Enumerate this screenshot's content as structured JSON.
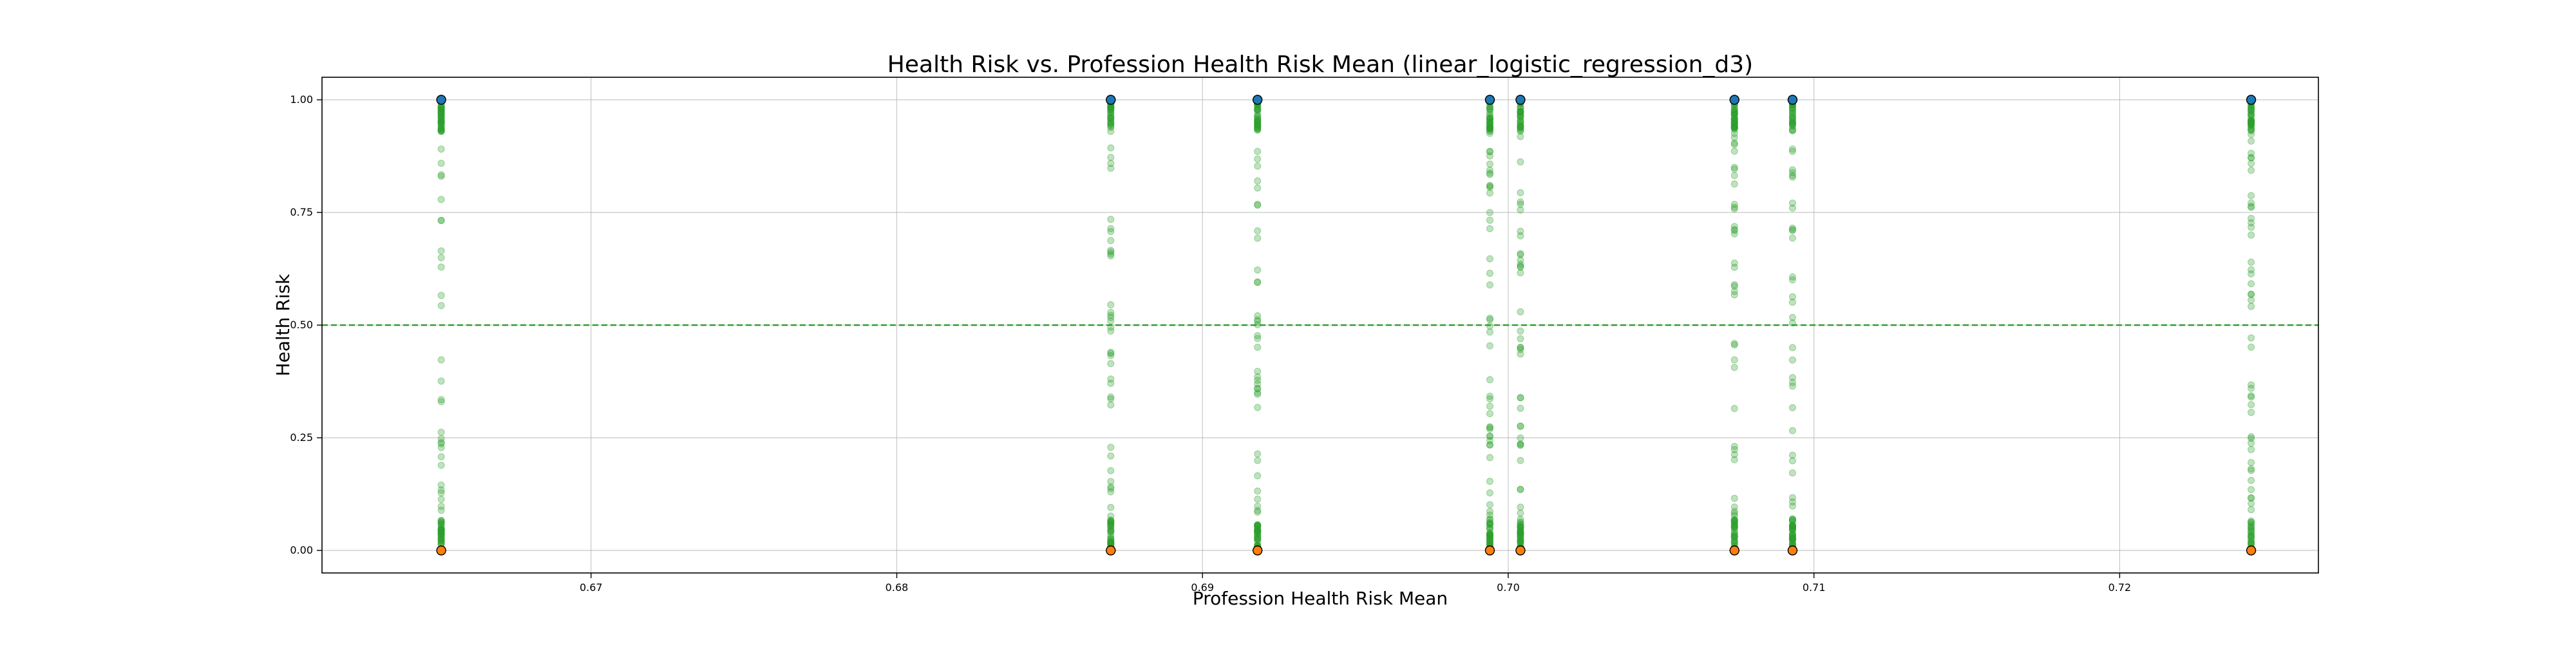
{
  "chart_data": {
    "type": "scatter",
    "title": "Health Risk vs. Profession Health Risk Mean (linear_logistic_regression_d3)",
    "xlabel": "Profession Health Risk Mean",
    "ylabel": "Health Risk",
    "xlim": [
      0.6612,
      0.7265
    ],
    "ylim": [
      -0.05,
      1.05
    ],
    "grid": true,
    "x_ticks": [
      {
        "value": 0.67,
        "label": "0.67"
      },
      {
        "value": 0.68,
        "label": "0.68"
      },
      {
        "value": 0.69,
        "label": "0.69"
      },
      {
        "value": 0.7,
        "label": "0.70"
      },
      {
        "value": 0.71,
        "label": "0.71"
      },
      {
        "value": 0.72,
        "label": "0.72"
      }
    ],
    "y_ticks": [
      {
        "value": 0.0,
        "label": "0.00"
      },
      {
        "value": 0.25,
        "label": "0.25"
      },
      {
        "value": 0.5,
        "label": "0.50"
      },
      {
        "value": 0.75,
        "label": "0.75"
      },
      {
        "value": 1.0,
        "label": "1.00"
      }
    ],
    "threshold_line": {
      "y": 0.5,
      "color": "#2ca02c",
      "style": "dashed"
    },
    "profession_means": [
      0.6651,
      0.687,
      0.6918,
      0.6994,
      0.7004,
      0.7074,
      0.7093,
      0.7243
    ],
    "colors": {
      "prediction_points": "#2ca02c",
      "actual_high_risk": "#1f77b4",
      "actual_low_risk": "#ff7f0e",
      "marker_edge": "#000000",
      "grid": "#b0b0b0"
    }
  }
}
